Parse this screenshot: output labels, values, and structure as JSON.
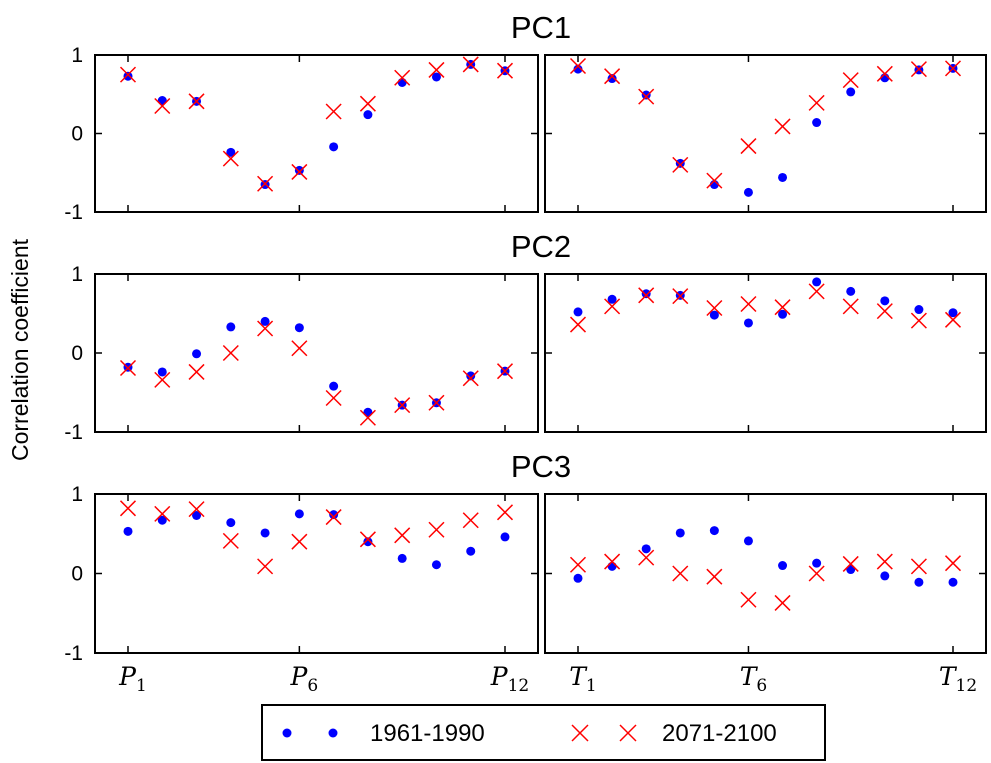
{
  "chart_data": {
    "type": "scatter",
    "ylabel": "Correlation coefficient",
    "ylim": [
      -1,
      1
    ],
    "yticks": [
      "1",
      "0",
      "-1"
    ],
    "x_ticks": {
      "left": [
        {
          "var": "P",
          "sub": "1",
          "x": 1
        },
        {
          "var": "P",
          "sub": "6",
          "x": 6
        },
        {
          "var": "P",
          "sub": "12",
          "x": 12
        }
      ],
      "right": [
        {
          "var": "T",
          "sub": "1",
          "x": 1
        },
        {
          "var": "T",
          "sub": "6",
          "x": 6
        },
        {
          "var": "T",
          "sub": "12",
          "x": 12
        }
      ]
    },
    "x": [
      1,
      2,
      3,
      4,
      5,
      6,
      7,
      8,
      9,
      10,
      11,
      12
    ],
    "legend": {
      "position": "bottom-center",
      "entries": [
        {
          "label": "1961-1990",
          "marker": "dot",
          "color": "#0000ff"
        },
        {
          "label": "2071-2100",
          "marker": "x",
          "color": "#ff0000"
        }
      ]
    },
    "panels": [
      {
        "title": "PC1",
        "left": {
          "1961-1990": [
            0.73,
            0.42,
            0.41,
            -0.24,
            -0.65,
            -0.47,
            -0.17,
            0.24,
            0.65,
            0.72,
            0.88,
            0.8
          ],
          "2071-2100": [
            0.75,
            0.35,
            0.41,
            -0.32,
            -0.64,
            -0.49,
            0.28,
            0.38,
            0.71,
            0.81,
            0.88,
            0.8
          ]
        },
        "right": {
          "1961-1990": [
            0.82,
            0.7,
            0.49,
            -0.38,
            -0.65,
            -0.75,
            -0.56,
            0.14,
            0.53,
            0.71,
            0.81,
            0.83
          ],
          "2071-2100": [
            0.86,
            0.73,
            0.47,
            -0.4,
            -0.6,
            -0.16,
            0.09,
            0.39,
            0.68,
            0.76,
            0.82,
            0.83
          ]
        }
      },
      {
        "title": "PC2",
        "left": {
          "1961-1990": [
            -0.18,
            -0.24,
            -0.01,
            0.33,
            0.4,
            0.32,
            -0.42,
            -0.75,
            -0.66,
            -0.63,
            -0.29,
            -0.23
          ],
          "2071-2100": [
            -0.19,
            -0.34,
            -0.24,
            0.0,
            0.31,
            0.06,
            -0.57,
            -0.82,
            -0.66,
            -0.63,
            -0.32,
            -0.23
          ]
        },
        "right": {
          "1961-1990": [
            0.52,
            0.68,
            0.75,
            0.73,
            0.48,
            0.38,
            0.49,
            0.9,
            0.78,
            0.66,
            0.55,
            0.51
          ],
          "2071-2100": [
            0.36,
            0.59,
            0.73,
            0.72,
            0.57,
            0.62,
            0.58,
            0.78,
            0.59,
            0.53,
            0.41,
            0.42
          ]
        }
      },
      {
        "title": "PC3",
        "left": {
          "1961-1990": [
            0.53,
            0.67,
            0.73,
            0.64,
            0.51,
            0.75,
            0.74,
            0.4,
            0.19,
            0.11,
            0.28,
            0.46
          ],
          "2071-2100": [
            0.82,
            0.75,
            0.81,
            0.41,
            0.09,
            0.4,
            0.71,
            0.43,
            0.48,
            0.55,
            0.67,
            0.77
          ]
        },
        "right": {
          "1961-1990": [
            -0.06,
            0.09,
            0.31,
            0.51,
            0.54,
            0.41,
            0.1,
            0.13,
            0.05,
            -0.03,
            -0.11,
            -0.11
          ],
          "2071-2100": [
            0.11,
            0.15,
            0.2,
            0.0,
            -0.04,
            -0.33,
            -0.37,
            0.0,
            0.12,
            0.15,
            0.09,
            0.13
          ]
        }
      }
    ]
  }
}
